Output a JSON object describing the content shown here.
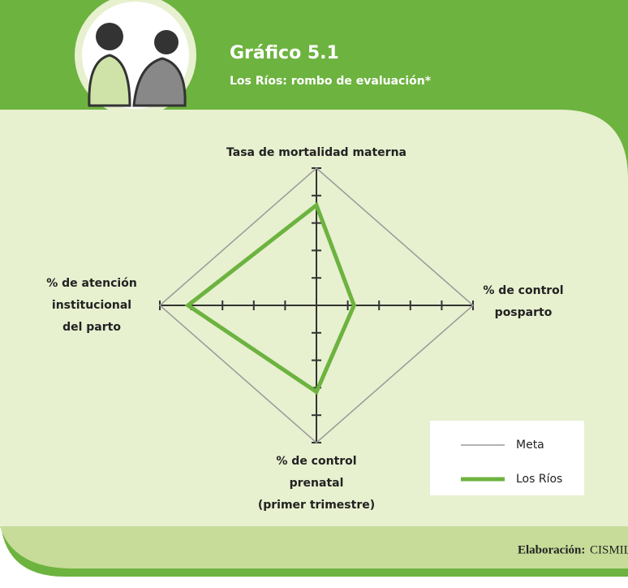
{
  "chart_data": {
    "type": "radar",
    "title": "Gráfico 5.1",
    "subtitle": "Los Ríos: rombo de evaluación*",
    "categories": [
      [
        "Tasa de mortalidad materna"
      ],
      [
        "% de control",
        "posparto"
      ],
      [
        "% de control",
        "prenatal",
        "(primer trimestre)"
      ],
      [
        "% de atención",
        "institucional",
        "del parto"
      ]
    ],
    "rlim": [
      0,
      100
    ],
    "rticks": [
      20,
      40,
      60,
      80,
      100
    ],
    "series": [
      {
        "name": "Meta",
        "color": "#9a9a9a",
        "values": [
          100,
          100,
          100,
          100
        ]
      },
      {
        "name": "Los Ríos",
        "color": "#6cb33f",
        "values": [
          73,
          24,
          63,
          82
        ]
      }
    ],
    "footer": {
      "label": "Elaboración:",
      "source": "CISMIL"
    }
  }
}
